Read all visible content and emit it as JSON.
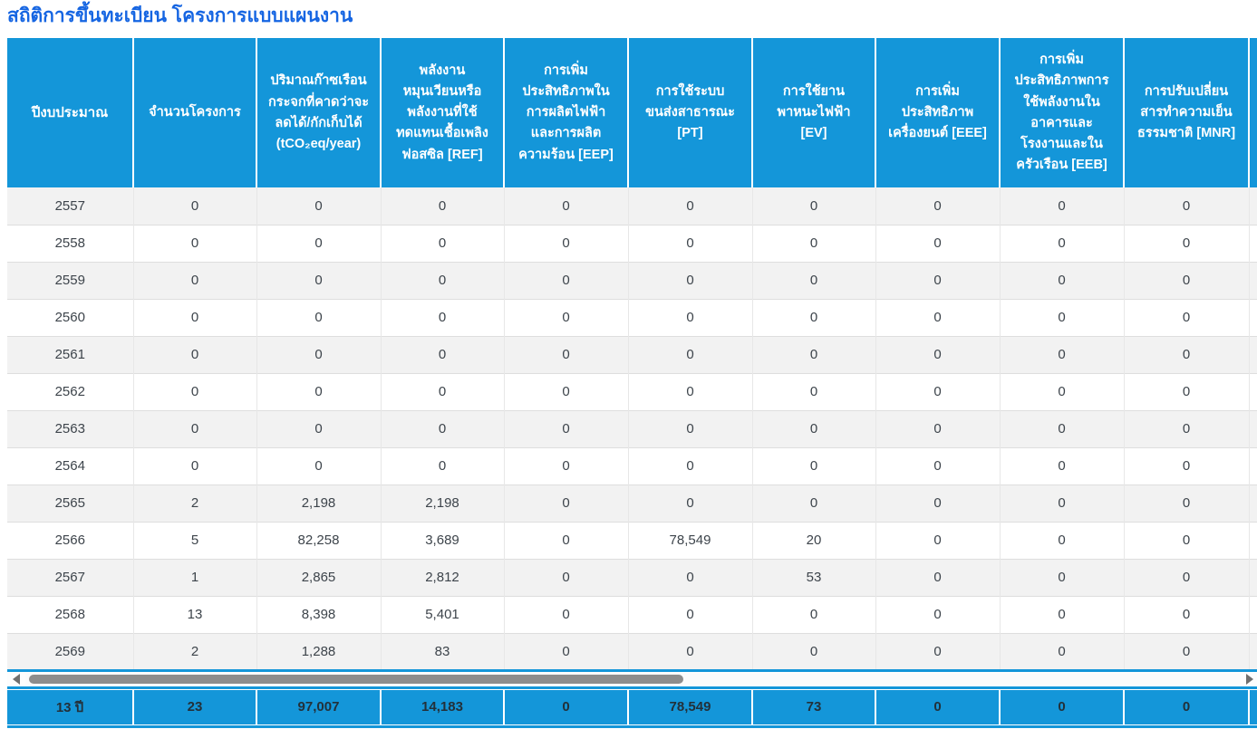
{
  "page": {
    "title": "สถิติการขึ้นทะเบียน โครงการแบบแผนงาน"
  },
  "colors": {
    "header_blue": "#1496d9",
    "title_blue": "#1565e2",
    "stripe_gray": "#f2f2f2",
    "footer_text": "#233039",
    "scrollbar_thumb": "#8d8d8d"
  },
  "icons": {
    "scroll_left": "left-triangle",
    "scroll_right": "right-triangle"
  },
  "table": {
    "columns": [
      "ปีงบประมาณ",
      "จำนวนโครงการ",
      "ปริมาณก๊าซเรือนกระจกที่คาดว่าจะลดได้/กักเก็บได้ (tCO₂eq/year)",
      "พลังงานหมุนเวียนหรือพลังงานที่ใช้ทดแทนเชื้อเพลิงฟอสซิล [REF]",
      "การเพิ่มประสิทธิภาพในการผลิตไฟฟ้าและการผลิตความร้อน [EEP]",
      "การใช้ระบบขนส่งสาธารณะ [PT]",
      "การใช้ยานพาหนะไฟฟ้า [EV]",
      "การเพิ่มประสิทธิภาพเครื่องยนต์ [EEE]",
      "การเพิ่มประสิทธิภาพการใช้พลังงานในอาคารและโรงงานและในครัวเรือน [EEB]",
      "การปรับเปลี่ยนสารทำความเย็นธรรมชาติ [MNR]",
      ""
    ],
    "rows": [
      {
        "year": "2557",
        "values": [
          "0",
          "0",
          "0",
          "0",
          "0",
          "0",
          "0",
          "0",
          "0"
        ]
      },
      {
        "year": "2558",
        "values": [
          "0",
          "0",
          "0",
          "0",
          "0",
          "0",
          "0",
          "0",
          "0"
        ]
      },
      {
        "year": "2559",
        "values": [
          "0",
          "0",
          "0",
          "0",
          "0",
          "0",
          "0",
          "0",
          "0"
        ]
      },
      {
        "year": "2560",
        "values": [
          "0",
          "0",
          "0",
          "0",
          "0",
          "0",
          "0",
          "0",
          "0"
        ]
      },
      {
        "year": "2561",
        "values": [
          "0",
          "0",
          "0",
          "0",
          "0",
          "0",
          "0",
          "0",
          "0"
        ]
      },
      {
        "year": "2562",
        "values": [
          "0",
          "0",
          "0",
          "0",
          "0",
          "0",
          "0",
          "0",
          "0"
        ]
      },
      {
        "year": "2563",
        "values": [
          "0",
          "0",
          "0",
          "0",
          "0",
          "0",
          "0",
          "0",
          "0"
        ]
      },
      {
        "year": "2564",
        "values": [
          "0",
          "0",
          "0",
          "0",
          "0",
          "0",
          "0",
          "0",
          "0"
        ]
      },
      {
        "year": "2565",
        "values": [
          "2",
          "2,198",
          "2,198",
          "0",
          "0",
          "0",
          "0",
          "0",
          "0"
        ]
      },
      {
        "year": "2566",
        "values": [
          "5",
          "82,258",
          "3,689",
          "0",
          "78,549",
          "20",
          "0",
          "0",
          "0"
        ]
      },
      {
        "year": "2567",
        "values": [
          "1",
          "2,865",
          "2,812",
          "0",
          "0",
          "53",
          "0",
          "0",
          "0"
        ]
      },
      {
        "year": "2568",
        "values": [
          "13",
          "8,398",
          "5,401",
          "0",
          "0",
          "0",
          "0",
          "0",
          "0"
        ]
      },
      {
        "year": "2569",
        "values": [
          "2",
          "1,288",
          "83",
          "0",
          "0",
          "0",
          "0",
          "0",
          "0"
        ]
      }
    ],
    "footer": {
      "label": "13 ปี",
      "values": [
        "23",
        "97,007",
        "14,183",
        "0",
        "78,549",
        "73",
        "0",
        "0",
        "0"
      ]
    }
  }
}
